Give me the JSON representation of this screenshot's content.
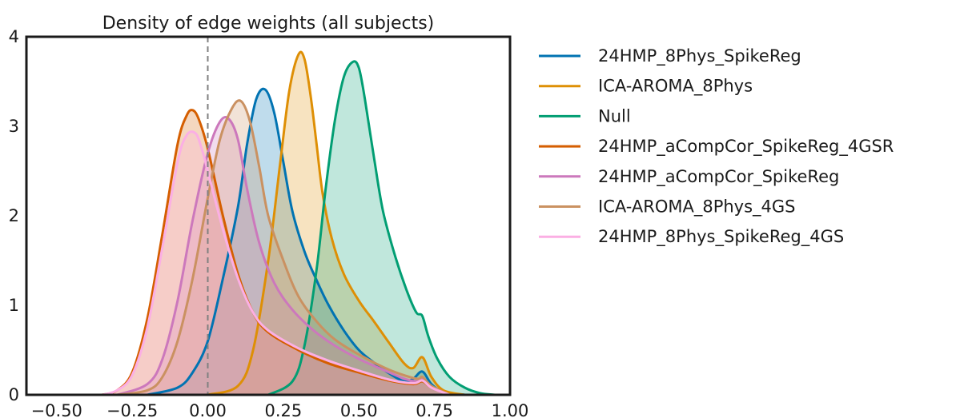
{
  "chart_data": {
    "type": "area",
    "title": "Density of edge weights (all subjects)",
    "xlabel": "",
    "ylabel": "",
    "xlim": [
      -0.6,
      1.0
    ],
    "ylim": [
      0,
      4
    ],
    "xticks": [
      -0.5,
      -0.25,
      0.0,
      0.25,
      0.5,
      0.75,
      1.0
    ],
    "xtick_labels": [
      "−0.50",
      "−0.25",
      "0.00",
      "0.25",
      "0.50",
      "0.75",
      "1.00"
    ],
    "yticks": [
      0,
      1,
      2,
      3,
      4
    ],
    "ytick_labels": [
      "0",
      "1",
      "2",
      "3",
      "4"
    ],
    "grid": false,
    "legend_position": "outside-right",
    "reference_line": {
      "x": 0.0,
      "style": "dashed",
      "color": "#808080"
    },
    "series": [
      {
        "name": "24HMP_8Phys_SpikeReg",
        "color": "#0173b2",
        "x": [
          -0.2,
          -0.1,
          -0.05,
          0.0,
          0.05,
          0.1,
          0.13,
          0.16,
          0.19,
          0.22,
          0.25,
          0.28,
          0.32,
          0.36,
          0.4,
          0.45,
          0.5,
          0.55,
          0.6,
          0.65,
          0.68,
          0.71,
          0.74,
          0.78,
          0.85
        ],
        "y": [
          0.0,
          0.08,
          0.25,
          0.6,
          1.3,
          2.1,
          2.8,
          3.3,
          3.41,
          3.15,
          2.6,
          2.05,
          1.6,
          1.28,
          1.0,
          0.72,
          0.5,
          0.36,
          0.24,
          0.15,
          0.18,
          0.26,
          0.12,
          0.03,
          0.0
        ]
      },
      {
        "name": "ICA-AROMA_8Phys",
        "color": "#de8f05",
        "x": [
          0.0,
          0.1,
          0.15,
          0.2,
          0.24,
          0.27,
          0.3,
          0.32,
          0.34,
          0.36,
          0.38,
          0.41,
          0.45,
          0.5,
          0.55,
          0.6,
          0.65,
          0.68,
          0.71,
          0.74,
          0.78,
          0.85
        ],
        "y": [
          0.0,
          0.1,
          0.5,
          1.5,
          2.6,
          3.4,
          3.8,
          3.75,
          3.35,
          2.8,
          2.25,
          1.75,
          1.35,
          1.05,
          0.82,
          0.58,
          0.35,
          0.3,
          0.42,
          0.2,
          0.05,
          0.0
        ]
      },
      {
        "name": "Null",
        "color": "#029e73",
        "x": [
          0.2,
          0.28,
          0.32,
          0.36,
          0.39,
          0.42,
          0.45,
          0.48,
          0.5,
          0.52,
          0.55,
          0.58,
          0.62,
          0.66,
          0.69,
          0.71,
          0.73,
          0.76,
          0.8,
          0.85,
          0.9,
          0.95
        ],
        "y": [
          0.0,
          0.15,
          0.55,
          1.4,
          2.3,
          3.05,
          3.55,
          3.72,
          3.65,
          3.3,
          2.65,
          2.05,
          1.55,
          1.15,
          0.92,
          0.88,
          0.65,
          0.4,
          0.2,
          0.08,
          0.02,
          0.0
        ]
      },
      {
        "name": "24HMP_aCompCor_SpikeReg_4GSR",
        "color": "#d55e00",
        "x": [
          -0.35,
          -0.3,
          -0.25,
          -0.2,
          -0.15,
          -0.1,
          -0.07,
          -0.05,
          -0.03,
          0.0,
          0.05,
          0.1,
          0.15,
          0.2,
          0.3,
          0.4,
          0.5,
          0.6,
          0.68,
          0.71,
          0.74,
          0.8
        ],
        "y": [
          0.0,
          0.05,
          0.25,
          0.85,
          1.8,
          2.8,
          3.12,
          3.18,
          3.08,
          2.75,
          2.0,
          1.35,
          0.92,
          0.7,
          0.5,
          0.35,
          0.25,
          0.16,
          0.12,
          0.15,
          0.08,
          0.0
        ]
      },
      {
        "name": "24HMP_aCompCor_SpikeReg",
        "color": "#cc78bc",
        "x": [
          -0.3,
          -0.2,
          -0.15,
          -0.1,
          -0.05,
          0.0,
          0.04,
          0.07,
          0.1,
          0.13,
          0.17,
          0.22,
          0.28,
          0.35,
          0.42,
          0.5,
          0.58,
          0.65,
          0.69,
          0.71,
          0.74,
          0.8
        ],
        "y": [
          0.0,
          0.12,
          0.4,
          1.05,
          1.95,
          2.7,
          3.05,
          3.08,
          2.85,
          2.3,
          1.7,
          1.25,
          0.95,
          0.72,
          0.55,
          0.4,
          0.28,
          0.18,
          0.15,
          0.18,
          0.08,
          0.0
        ]
      },
      {
        "name": "ICA-AROMA_8Phys_4GS",
        "color": "#ca9161",
        "x": [
          -0.3,
          -0.2,
          -0.15,
          -0.1,
          -0.05,
          0.0,
          0.04,
          0.08,
          0.11,
          0.14,
          0.17,
          0.2,
          0.25,
          0.3,
          0.36,
          0.42,
          0.5,
          0.6,
          0.69,
          0.71,
          0.74,
          0.8
        ],
        "y": [
          0.0,
          0.05,
          0.2,
          0.6,
          1.3,
          2.2,
          2.85,
          3.2,
          3.28,
          3.05,
          2.55,
          2.0,
          1.5,
          1.1,
          0.82,
          0.62,
          0.45,
          0.28,
          0.18,
          0.2,
          0.1,
          0.0
        ]
      },
      {
        "name": "24HMP_8Phys_SpikeReg_4GS",
        "color": "#fbafe4",
        "x": [
          -0.35,
          -0.3,
          -0.25,
          -0.2,
          -0.15,
          -0.1,
          -0.07,
          -0.04,
          -0.02,
          0.0,
          0.05,
          0.1,
          0.15,
          0.2,
          0.3,
          0.4,
          0.5,
          0.6,
          0.68,
          0.71,
          0.74,
          0.8
        ],
        "y": [
          0.0,
          0.05,
          0.22,
          0.75,
          1.65,
          2.6,
          2.9,
          2.92,
          2.75,
          2.5,
          1.85,
          1.3,
          0.92,
          0.72,
          0.52,
          0.38,
          0.27,
          0.17,
          0.13,
          0.16,
          0.08,
          0.0
        ]
      }
    ]
  }
}
